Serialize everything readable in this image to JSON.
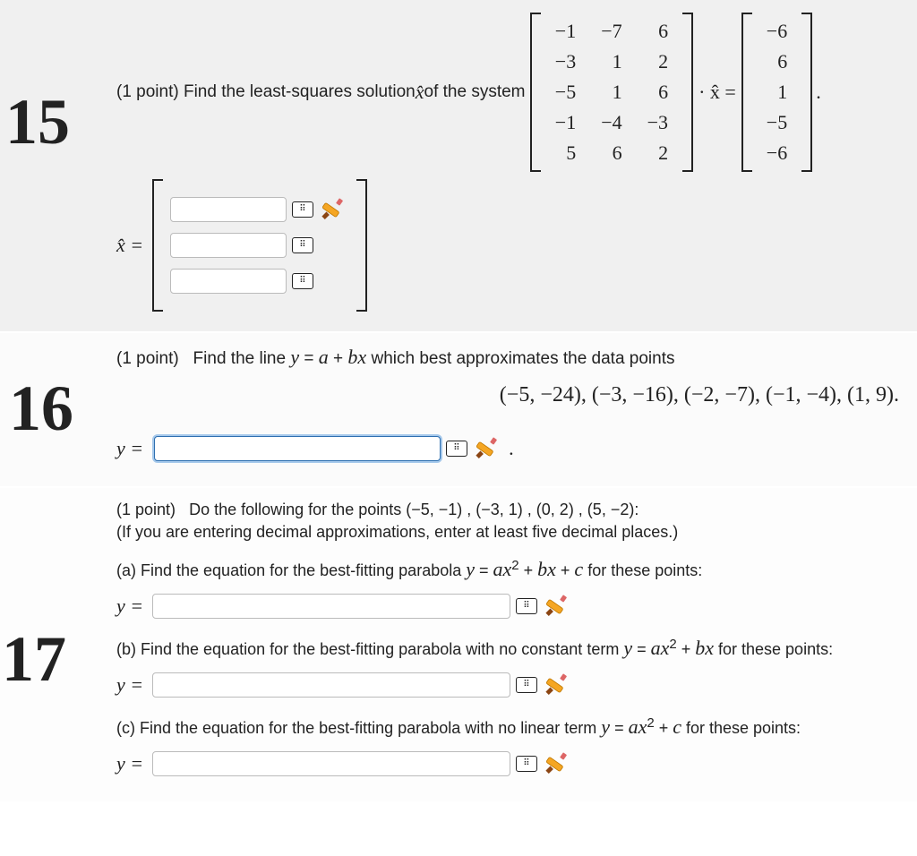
{
  "annotations": {
    "p15": "15",
    "p16": "16",
    "p17": "17"
  },
  "problem15": {
    "points_label": "(1 point)",
    "prompt_pre": "Find the least-squares solution ",
    "xhat": "x̂",
    "prompt_post": " of the system",
    "matrix_A": [
      [
        "−1",
        "−7",
        "6"
      ],
      [
        "−3",
        "1",
        "2"
      ],
      [
        "−5",
        "1",
        "6"
      ],
      [
        "−1",
        "−4",
        "−3"
      ],
      [
        "5",
        "6",
        "2"
      ]
    ],
    "middle_sym": "· x̂ =",
    "vector_b": [
      "−6",
      "6",
      "1",
      "−5",
      "−6"
    ],
    "period": ".",
    "xhat_eq": "x̂ =",
    "answer_rows": 3
  },
  "problem16": {
    "points_label": "(1 point)",
    "prompt": "Find the line y = a + bx which best approximates the data points",
    "prompt_html_parts": [
      "Find the line ",
      "y",
      " = ",
      "a",
      " + ",
      "bx",
      " which best approximates the data points"
    ],
    "data_points": "(−5, −24), (−3, −16), (−2, −7), (−1, −4), (1, 9).",
    "y_eq": "y =",
    "trailing": "."
  },
  "problem17": {
    "points_label": "(1 point)",
    "intro_a": "Do the following for the points (−5, −1) , (−3, 1) , (0, 2) , (5, −2):",
    "intro_b": "(If you are entering decimal approximations, enter at least five decimal places.)",
    "part_a": "(a) Find the equation for the best-fitting parabola y = ax² + bx + c for these points:",
    "part_b": "(b) Find the equation for the best-fitting parabola with no constant term y = ax² + bx for these points:",
    "part_c": "(c) Find the equation for the best-fitting parabola with no linear term y = ax² + c for these points:",
    "y_eq": "y ="
  },
  "icons": {
    "keypad": "⠿",
    "pencil_color": "#f5a623",
    "pencil_tip": "#8b4513"
  }
}
